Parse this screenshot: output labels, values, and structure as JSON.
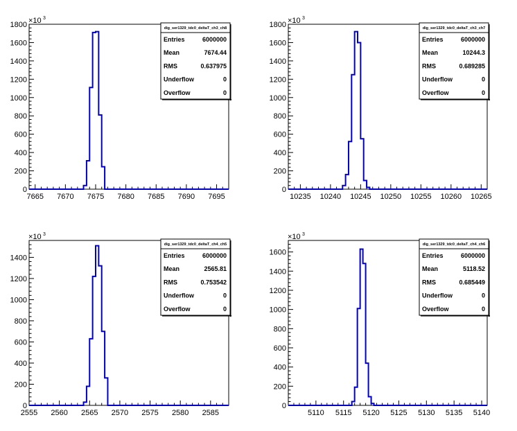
{
  "chart_data": [
    {
      "type": "bar",
      "title": "",
      "histogram_name": "dig_ser1329_tdc0_deltaT_ch3_ch8",
      "y_multiplier": {
        "base": "×10",
        "exp": "3"
      },
      "xlim": [
        7664,
        7697
      ],
      "ylim": [
        0,
        1800
      ],
      "x_ticks": [
        7665,
        7670,
        7675,
        7680,
        7685,
        7690,
        7695
      ],
      "y_ticks": [
        0,
        200,
        400,
        600,
        800,
        1000,
        1200,
        1400,
        1600,
        1800
      ],
      "bin_width": 0.5,
      "x": [
        7673.0,
        7673.5,
        7674.0,
        7674.5,
        7675.0,
        7675.5,
        7676.0
      ],
      "values": [
        40,
        310,
        1110,
        1710,
        1720,
        810,
        245
      ],
      "stats": [
        {
          "label": "Entries",
          "value": "6000000"
        },
        {
          "label": "Mean",
          "value": "7674.44"
        },
        {
          "label": "RMS",
          "value": "0.637975"
        },
        {
          "label": "Underflow",
          "value": "0"
        },
        {
          "label": "Overflow",
          "value": "0"
        }
      ]
    },
    {
      "type": "bar",
      "title": "",
      "histogram_name": "dig_ser1329_tdc0_deltaT_ch3_ch7",
      "y_multiplier": {
        "base": "×10",
        "exp": "3"
      },
      "xlim": [
        10233,
        10266
      ],
      "ylim": [
        0,
        1800
      ],
      "x_ticks": [
        10235,
        10240,
        10245,
        10250,
        10255,
        10260,
        10265
      ],
      "y_ticks": [
        0,
        200,
        400,
        600,
        800,
        1000,
        1200,
        1400,
        1600,
        1800
      ],
      "bin_width": 0.5,
      "x": [
        10242.0,
        10242.5,
        10243.0,
        10243.5,
        10244.0,
        10244.5,
        10245.0,
        10245.5,
        10246.0
      ],
      "values": [
        40,
        160,
        520,
        1250,
        1720,
        1600,
        550,
        95,
        20
      ],
      "stats": [
        {
          "label": "Entries",
          "value": "6000000"
        },
        {
          "label": "Mean",
          "value": "10244.3"
        },
        {
          "label": "RMS",
          "value": "0.689285"
        },
        {
          "label": "Underflow",
          "value": "0"
        },
        {
          "label": "Overflow",
          "value": "0"
        }
      ]
    },
    {
      "type": "bar",
      "title": "",
      "histogram_name": "dig_ser1329_tdc0_deltaT_ch4_ch5",
      "y_multiplier": {
        "base": "×10",
        "exp": "3"
      },
      "xlim": [
        2555,
        2588
      ],
      "ylim": [
        0,
        1560
      ],
      "x_ticks": [
        2555,
        2560,
        2565,
        2570,
        2575,
        2580,
        2585
      ],
      "y_ticks": [
        0,
        200,
        400,
        600,
        800,
        1000,
        1200,
        1400
      ],
      "bin_width": 0.5,
      "x": [
        2564.0,
        2564.5,
        2565.0,
        2565.5,
        2566.0,
        2566.5,
        2567.0,
        2567.5
      ],
      "values": [
        30,
        180,
        630,
        1220,
        1510,
        1320,
        700,
        260
      ],
      "stats": [
        {
          "label": "Entries",
          "value": "6000000"
        },
        {
          "label": "Mean",
          "value": "2565.81"
        },
        {
          "label": "RMS",
          "value": "0.753542"
        },
        {
          "label": "Underflow",
          "value": "0"
        },
        {
          "label": "Overflow",
          "value": "0"
        }
      ]
    },
    {
      "type": "bar",
      "title": "",
      "histogram_name": "dig_ser1329_tdc0_deltaT_ch4_ch6",
      "y_multiplier": {
        "base": "×10",
        "exp": "3"
      },
      "xlim": [
        5105,
        5141
      ],
      "ylim": [
        0,
        1720
      ],
      "x_ticks": [
        5110,
        5115,
        5120,
        5125,
        5130,
        5135,
        5140
      ],
      "y_ticks": [
        0,
        200,
        400,
        600,
        800,
        1000,
        1200,
        1400,
        1600
      ],
      "bin_width": 0.5,
      "x": [
        5116.5,
        5117.0,
        5117.5,
        5118.0,
        5118.5,
        5119.0,
        5119.5,
        5120.0
      ],
      "values": [
        40,
        190,
        1010,
        1630,
        1480,
        440,
        90,
        20
      ],
      "stats": [
        {
          "label": "Entries",
          "value": "6000000"
        },
        {
          "label": "Mean",
          "value": "5118.52"
        },
        {
          "label": "RMS",
          "value": "0.685449"
        },
        {
          "label": "Underflow",
          "value": "0"
        },
        {
          "label": "Overflow",
          "value": "0"
        }
      ]
    }
  ],
  "colors": {
    "histogram": "#0000cc",
    "axis": "#000000",
    "background": "#ffffff"
  }
}
